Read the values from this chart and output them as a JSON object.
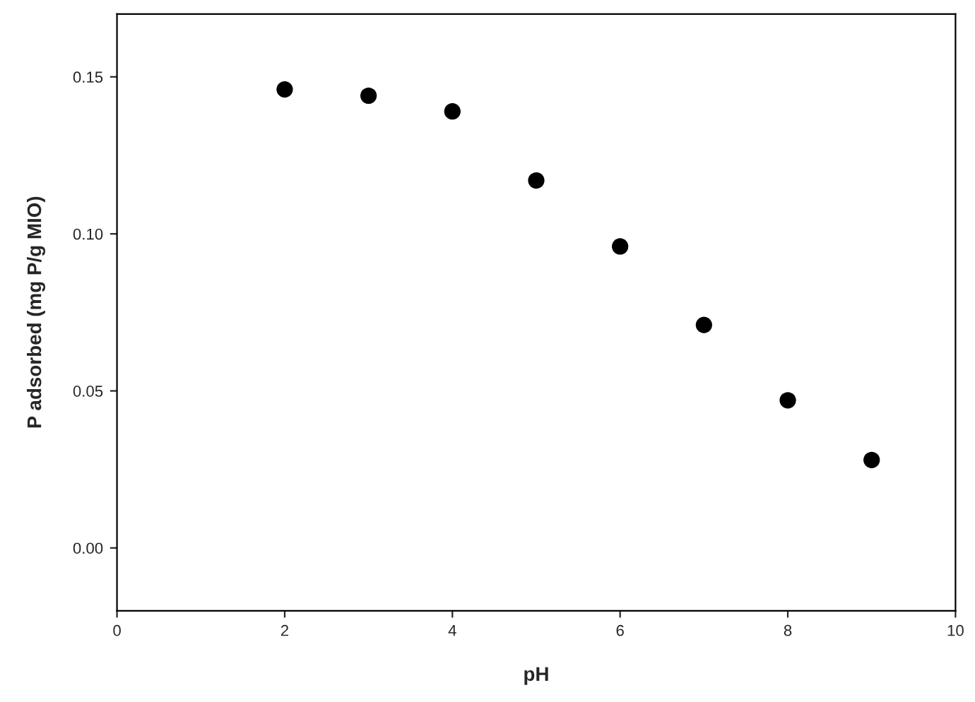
{
  "chart_data": {
    "type": "scatter",
    "xlabel": "pH",
    "ylabel": "P adsorbed (mg P/g MIO)",
    "x": [
      2,
      3,
      4,
      5,
      6,
      7,
      8,
      9
    ],
    "series": [
      {
        "color": "#000000",
        "values": [
          0.146,
          0.144,
          0.139,
          0.117,
          0.096,
          0.071,
          0.047,
          0.028
        ]
      }
    ],
    "xlim": [
      0,
      10
    ],
    "xticks": [
      0,
      2,
      4,
      6,
      8,
      10
    ],
    "ylim": [
      -0.02,
      0.17
    ],
    "yticks": [
      {
        "value": 0,
        "label": "0.00"
      },
      {
        "value": 0.05,
        "label": "0.05"
      },
      {
        "value": 0.1,
        "label": "0.10"
      },
      {
        "value": 0.15,
        "label": "0.15"
      }
    ],
    "marker": "circle",
    "grid": false
  }
}
